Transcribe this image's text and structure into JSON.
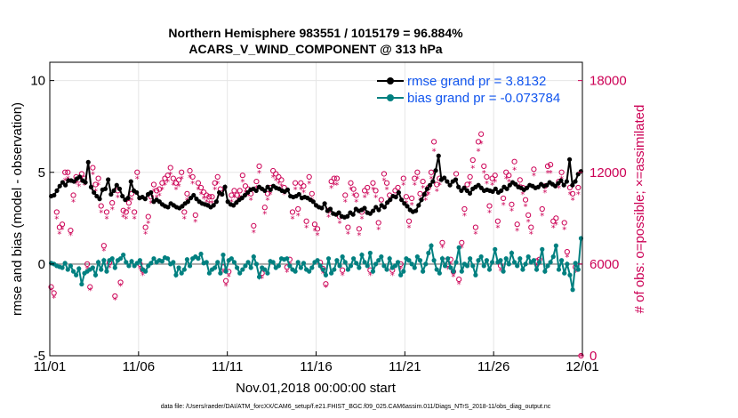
{
  "chart_data": {
    "type": "line",
    "title_line1": "Northern Hemisphere 983551 / 1015179 = 96.884%",
    "title_line2": "ACARS_V_WIND_COMPONENT @ 313 hPa",
    "ylabel_left": "rmse and bias (model - observation)",
    "ylabel_right": "# of obs: o=possible; ×=assimilated",
    "xlabel": "Nov.01,2018 00:00:00 start",
    "footnote": "data file: /Users/raeder/DAI/ATM_forcXX/CAM6_setup/f.e21.FHIST_BGC.f09_025.CAM6assim.011/Diags_NTrS_2018-11/obs_diag_output.nc",
    "x_range": [
      0,
      30
    ],
    "y_left_range": [
      -5,
      11
    ],
    "y_right_range": [
      0,
      19200
    ],
    "x_ticks": [
      {
        "v": 0,
        "label": "11/01"
      },
      {
        "v": 5,
        "label": "11/06"
      },
      {
        "v": 10,
        "label": "11/11"
      },
      {
        "v": 15,
        "label": "11/16"
      },
      {
        "v": 20,
        "label": "11/21"
      },
      {
        "v": 25,
        "label": "11/26"
      },
      {
        "v": 30,
        "label": "12/01"
      }
    ],
    "y_left_ticks": [
      {
        "v": -5,
        "label": "-5"
      },
      {
        "v": 0,
        "label": "0"
      },
      {
        "v": 5,
        "label": "5"
      },
      {
        "v": 10,
        "label": "10"
      }
    ],
    "y_right_ticks": [
      {
        "v": 0,
        "label": "0"
      },
      {
        "v": 6000,
        "label": "6000"
      },
      {
        "v": 12000,
        "label": "12000"
      },
      {
        "v": 18000,
        "label": "18000"
      }
    ],
    "legend": [
      {
        "name": "rmse grand pr = 3.8132",
        "color": "#000000"
      },
      {
        "name": "bias grand pr = -0.073784",
        "color": "#008080"
      }
    ],
    "zero_line_color": "#aaaaaa",
    "rmse_color": "#000000",
    "bias_color": "#008080",
    "obs_color": "#cc0055",
    "rmse": [
      3.7,
      3.75,
      4.0,
      4.25,
      4.45,
      4.3,
      4.55,
      4.55,
      4.5,
      4.65,
      4.75,
      4.55,
      4.45,
      5.55,
      4.2,
      3.9,
      3.7,
      3.55,
      4.05,
      4.1,
      4.6,
      3.8,
      4.0,
      4.3,
      4.1,
      3.7,
      3.5,
      3.6,
      4.5,
      4.0,
      3.9,
      3.6,
      3.65,
      3.55,
      3.8,
      3.9,
      3.4,
      3.5,
      3.4,
      3.25,
      3.15,
      3.1,
      3.3,
      3.2,
      3.1,
      3.05,
      3.15,
      3.3,
      3.4,
      3.6,
      3.75,
      3.55,
      3.4,
      3.3,
      3.25,
      3.2,
      3.1,
      3.2,
      3.4,
      3.9,
      3.8,
      4.2,
      3.4,
      3.25,
      3.2,
      3.35,
      3.5,
      3.6,
      3.75,
      3.9,
      4.05,
      4.1,
      4.0,
      4.2,
      4.1,
      4.0,
      4.2,
      4.05,
      4.25,
      4.15,
      4.1,
      4.0,
      3.95,
      4.05,
      3.7,
      3.65,
      3.7,
      3.8,
      3.6,
      3.65,
      3.6,
      3.5,
      3.4,
      3.2,
      3.1,
      3.05,
      3.3,
      2.9,
      3.0,
      2.75,
      2.7,
      2.8,
      2.6,
      2.55,
      2.6,
      2.8,
      2.7,
      3.0,
      2.9,
      2.95,
      3.05,
      2.8,
      2.75,
      2.9,
      3.1,
      2.95,
      3.2,
      3.1,
      3.35,
      3.5,
      3.7,
      3.65,
      3.9,
      3.5,
      3.3,
      3.15,
      2.95,
      2.85,
      2.9,
      3.2,
      3.5,
      3.8,
      4.1,
      4.3,
      4.5,
      5.1,
      5.9,
      4.6,
      4.7,
      4.5,
      4.3,
      4.5,
      4.6,
      4.2,
      4.0,
      4.15,
      4.0,
      3.85,
      4.1,
      4.2,
      4.3,
      4.15,
      4.0,
      4.05,
      4.0,
      3.95,
      4.1,
      3.9,
      4.0,
      4.2,
      4.1,
      4.3,
      4.45,
      4.35,
      4.2,
      4.15,
      4.05,
      4.15,
      4.3,
      4.25,
      4.15,
      4.2,
      4.35,
      4.25,
      4.3,
      4.45,
      4.35,
      4.25,
      4.4,
      4.55,
      4.3,
      4.5,
      5.7,
      4.3,
      4.5,
      4.9,
      5.05
    ],
    "bias": [
      0.05,
      0.0,
      -0.1,
      -0.15,
      -0.2,
      0.05,
      -0.3,
      -0.1,
      -0.4,
      -0.6,
      -0.25,
      -1.1,
      -0.5,
      -0.4,
      -0.3,
      -0.2,
      -0.6,
      0.1,
      -0.3,
      0.2,
      -0.4,
      0.2,
      0.3,
      -0.2,
      0.2,
      0.3,
      0.5,
      0.1,
      -0.1,
      0.15,
      -0.1,
      0.05,
      0.2,
      -0.3,
      -0.4,
      -0.1,
      0.05,
      0.3,
      0.1,
      0.2,
      0.15,
      0.35,
      0.3,
      0.0,
      0.1,
      -0.6,
      -0.2,
      -0.5,
      -0.3,
      0.25,
      -0.1,
      0.3,
      0.4,
      0.3,
      0.55,
      0.05,
      0.1,
      -0.5,
      -0.3,
      -0.2,
      0.1,
      -0.5,
      0.5,
      -0.4,
      0.2,
      0.3,
      0.1,
      -0.2,
      -0.5,
      -0.3,
      -0.1,
      0.1,
      -0.2,
      0.4,
      0.0,
      -0.7,
      -0.2,
      -0.3,
      -0.5,
      0.15,
      0.1,
      -0.2,
      -0.1,
      0.3,
      0.25,
      0.3,
      -0.1,
      -0.3,
      -0.4,
      0.1,
      -0.2,
      0.05,
      -0.3,
      -0.4,
      -0.2,
      0.1,
      0.2,
      -0.1,
      -0.3,
      -0.6,
      0.3,
      -0.5,
      -0.3,
      0.2,
      -0.1,
      0.4,
      0.1,
      -0.3,
      -0.1,
      0.3,
      0.05,
      -0.2,
      0.5,
      0.1,
      -0.1,
      0.6,
      -0.4,
      0.0,
      0.2,
      0.4,
      -0.1,
      -0.3,
      0.3,
      -0.2,
      -0.1,
      0.1,
      -0.6,
      -0.4,
      0.3,
      0.2,
      0.0,
      -0.2,
      0.4,
      0.2,
      -0.4,
      0.0,
      0.6,
      1.0,
      0.2,
      -0.3,
      -0.5,
      0.3,
      -0.1,
      0.3,
      -0.2,
      -0.4,
      0.1,
      0.9,
      -0.4,
      0.0,
      -0.1,
      0.3,
      -0.1,
      -0.6,
      0.2,
      0.4,
      -0.1,
      0.2,
      -0.3,
      0.1,
      0.8,
      0.1,
      0.2,
      -0.4,
      0.3,
      0.0,
      0.6,
      0.1,
      -0.1,
      0.3,
      -0.3,
      0.0,
      0.4,
      0.1,
      0.2,
      -0.3,
      0.1,
      0.8,
      -0.4,
      -0.1,
      0.1,
      0.4,
      1.0,
      -0.3,
      0.2,
      -0.5,
      0.0,
      -0.6,
      -1.4,
      0.05,
      -0.3,
      1.4
    ],
    "obs_possible": [
      4500,
      4100,
      9400,
      8400,
      8600,
      12000,
      12000,
      8200,
      10500,
      11700,
      11500,
      11900,
      11600,
      6000,
      4500,
      12300,
      11200,
      11600,
      9800,
      7200,
      9400,
      6100,
      10000,
      3900,
      10800,
      4800,
      9500,
      9400,
      10000,
      10600,
      9400,
      12000,
      6000,
      5600,
      8400,
      9100,
      10400,
      11200,
      10800,
      10900,
      11300,
      11600,
      11800,
      12300,
      11600,
      11300,
      11500,
      12000,
      9400,
      10600,
      12100,
      11700,
      9200,
      11300,
      11000,
      10700,
      10500,
      10400,
      10400,
      11300,
      11700,
      10900,
      5800,
      4900,
      5500,
      10500,
      10800,
      10500,
      10800,
      11800,
      11100,
      10900,
      10600,
      8500,
      11400,
      12400,
      5400,
      9700,
      10600,
      11000,
      12100,
      11900,
      11700,
      11500,
      11000,
      5800,
      6300,
      9400,
      11300,
      9600,
      11300,
      11100,
      8800,
      11700,
      10600,
      8600,
      8300,
      6100,
      5700,
      4700,
      9500,
      11400,
      11600,
      11600,
      9100,
      5600,
      10500,
      8400,
      11300,
      10900,
      10500,
      8300,
      9400,
      10800,
      11000,
      5600,
      11300,
      10800,
      8700,
      10200,
      11900,
      11300,
      10500,
      5600,
      10800,
      11000,
      6000,
      11600,
      10400,
      8800,
      10300,
      11600,
      12000,
      10600,
      11400,
      10600,
      11000,
      12000,
      14000,
      11200,
      11600,
      7400,
      6200,
      6000,
      6300,
      5500,
      11900,
      5000,
      7400,
      9600,
      11200,
      11700,
      12800,
      8400,
      14000,
      14500,
      12400,
      11700,
      9800,
      11600,
      11800,
      8800,
      5900,
      10300,
      12000,
      11800,
      9900,
      12700,
      8600,
      11500,
      11000,
      10200,
      9200,
      8400,
      12200,
      6200,
      6300,
      9600,
      11100,
      12400,
      12500,
      8800,
      9000,
      11400,
      12000,
      8700,
      6800,
      11000,
      10600,
      5800,
      11000,
      0
    ],
    "obs_assimilated": [
      4300,
      3800,
      9000,
      8000,
      8300,
      11500,
      11600,
      7900,
      10100,
      11300,
      11100,
      11500,
      11200,
      5700,
      4300,
      11900,
      10800,
      11200,
      9400,
      6900,
      9000,
      5800,
      9600,
      3700,
      10400,
      4600,
      9100,
      9000,
      9600,
      10200,
      9000,
      11600,
      5700,
      5300,
      8000,
      8700,
      10000,
      10800,
      10400,
      10500,
      10900,
      11200,
      11400,
      11900,
      11200,
      10900,
      11100,
      11600,
      9000,
      10200,
      11700,
      11300,
      8800,
      10900,
      10600,
      10300,
      10100,
      10000,
      10000,
      10900,
      11300,
      10500,
      5500,
      4600,
      5200,
      10100,
      10400,
      10100,
      10400,
      11400,
      10700,
      10500,
      10200,
      8100,
      11000,
      12000,
      5100,
      9300,
      10200,
      10600,
      11700,
      11500,
      11300,
      11100,
      10600,
      5500,
      6000,
      9000,
      10900,
      9200,
      10900,
      10700,
      8400,
      11300,
      10200,
      8200,
      7900,
      5800,
      5400,
      4500,
      9100,
      11000,
      11200,
      11200,
      8700,
      5300,
      10100,
      8000,
      10900,
      10500,
      10100,
      7900,
      9000,
      10400,
      10600,
      5300,
      10900,
      10400,
      8300,
      9800,
      11500,
      10900,
      10100,
      5300,
      10400,
      10600,
      5700,
      11200,
      10000,
      8400,
      9900,
      11200,
      11600,
      10200,
      11000,
      10200,
      10600,
      11600,
      13400,
      10800,
      11200,
      7100,
      5900,
      5700,
      6000,
      5200,
      11500,
      4700,
      7100,
      9200,
      10800,
      11300,
      12300,
      8000,
      13400,
      13900,
      12000,
      11300,
      9400,
      11200,
      11400,
      8400,
      5600,
      9900,
      11600,
      11400,
      9500,
      12200,
      8200,
      11100,
      10600,
      9800,
      8800,
      8000,
      11800,
      5900,
      6000,
      9200,
      10700,
      12000,
      12000,
      8400,
      8600,
      11000,
      11600,
      8300,
      6500,
      10600,
      10200,
      5500,
      10600,
      0
    ]
  }
}
